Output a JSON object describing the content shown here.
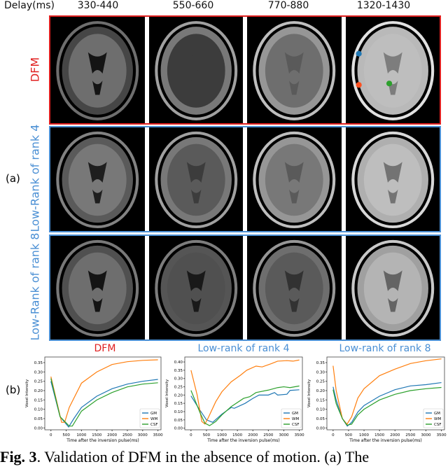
{
  "header": {
    "delay_label": "Delay(ms)",
    "delays": [
      "330-440",
      "550-660",
      "770-880",
      "1320-1430"
    ]
  },
  "rows": [
    {
      "label": "DFM",
      "color": "#e02020"
    },
    {
      "label": "Low-Rank of rank 4",
      "color": "#4a8fd4"
    },
    {
      "label": "Low-Rank of rank 8",
      "color": "#4a8fd4"
    }
  ],
  "panel_a_label": "(a)",
  "panel_b_label": "(b)",
  "roi_markers": [
    {
      "tissue": "GM",
      "color": "#1f77b4"
    },
    {
      "tissue": "CSF",
      "color": "#ff5020"
    },
    {
      "tissue": "WM",
      "color": "#2ca02c"
    }
  ],
  "caption": {
    "fig": "Fig. 3",
    "text": ". Validation of DFM in the absence of motion. (a) The"
  },
  "chart_data": [
    {
      "type": "line",
      "title": "DFM",
      "title_color": "#e02020",
      "xlabel": "Time after the inversion pulse(ms)",
      "ylabel": "Voxel Intensity",
      "xlim": [
        -200,
        3600
      ],
      "ylim": [
        -0.01,
        0.38
      ],
      "xticks": [
        0,
        500,
        1000,
        1500,
        2000,
        2500,
        3000,
        3500
      ],
      "yticks": [
        "0.00",
        "0.05",
        "0.10",
        "0.15",
        "0.20",
        "0.25",
        "0.30",
        "0.35"
      ],
      "legend": "bottom-right",
      "series": [
        {
          "name": "GM",
          "color": "#1f77b4",
          "x": [
            0,
            300,
            580,
            750,
            1000,
            1500,
            2000,
            2500,
            3000,
            3500
          ],
          "y": [
            0.25,
            0.06,
            0.005,
            0.05,
            0.11,
            0.17,
            0.21,
            0.235,
            0.25,
            0.26
          ]
        },
        {
          "name": "WM",
          "color": "#ff7f0e",
          "x": [
            0,
            350,
            450,
            600,
            1000,
            1500,
            2000,
            2500,
            3000,
            3500
          ],
          "y": [
            0.275,
            0.03,
            0.03,
            0.11,
            0.24,
            0.3,
            0.34,
            0.355,
            0.362,
            0.365
          ]
        },
        {
          "name": "CSF",
          "color": "#2ca02c",
          "x": [
            0,
            300,
            600,
            700,
            1000,
            1500,
            2000,
            2500,
            3000,
            3500
          ],
          "y": [
            0.265,
            0.06,
            0.01,
            0.01,
            0.09,
            0.15,
            0.19,
            0.22,
            0.235,
            0.242
          ]
        }
      ]
    },
    {
      "type": "line",
      "title": "Low-rank of rank 4",
      "title_color": "#4a8fd4",
      "xlabel": "Time after the inversion pulse(ms)",
      "ylabel": "Voxel Intensity",
      "xlim": [
        -200,
        3600
      ],
      "ylim": [
        -0.01,
        0.43
      ],
      "xticks": [
        0,
        500,
        1000,
        1500,
        2000,
        2500,
        3000,
        3500
      ],
      "yticks": [
        "0.00",
        "0.05",
        "0.10",
        "0.15",
        "0.20",
        "0.25",
        "0.30",
        "0.35",
        "0.40"
      ],
      "legend": "bottom-right",
      "series": [
        {
          "name": "GM",
          "color": "#1f77b4",
          "x": [
            0,
            250,
            500,
            700,
            1000,
            1300,
            1400,
            1750,
            2000,
            2200,
            2500,
            2700,
            2800,
            3100,
            3200,
            3500
          ],
          "y": [
            0.195,
            0.12,
            0.05,
            0.035,
            0.085,
            0.125,
            0.12,
            0.15,
            0.18,
            0.2,
            0.2,
            0.215,
            0.2,
            0.205,
            0.228,
            0.232
          ]
        },
        {
          "name": "WM",
          "color": "#ff7f0e",
          "x": [
            0,
            200,
            350,
            450,
            550,
            800,
            1000,
            1300,
            1600,
            1800,
            2100,
            2300,
            2600,
            2800,
            3100,
            3300,
            3500
          ],
          "y": [
            0.35,
            0.2,
            0.04,
            0.025,
            0.06,
            0.16,
            0.22,
            0.28,
            0.32,
            0.35,
            0.375,
            0.37,
            0.39,
            0.405,
            0.408,
            0.405,
            0.412
          ]
        },
        {
          "name": "CSF",
          "color": "#2ca02c",
          "x": [
            0,
            300,
            450,
            600,
            800,
            1000,
            1300,
            1700,
            1900,
            2100,
            2500,
            2800,
            3000,
            3200,
            3500
          ],
          "y": [
            0.228,
            0.09,
            0.03,
            0.015,
            0.04,
            0.08,
            0.13,
            0.18,
            0.19,
            0.215,
            0.23,
            0.245,
            0.25,
            0.245,
            0.255
          ]
        }
      ]
    },
    {
      "type": "line",
      "title": "Low-rank of rank 8",
      "title_color": "#4a8fd4",
      "xlabel": "Time after the inversion pulse(ms)",
      "ylabel": "Voxel Intensity",
      "xlim": [
        -200,
        3600
      ],
      "ylim": [
        -0.01,
        0.38
      ],
      "xticks": [
        0,
        500,
        1000,
        1500,
        2000,
        2500,
        3000,
        3500
      ],
      "yticks": [
        "0.00",
        "0.05",
        "0.10",
        "0.15",
        "0.20",
        "0.25",
        "0.30",
        "0.35"
      ],
      "legend": "bottom-right",
      "series": [
        {
          "name": "GM",
          "color": "#1f77b4",
          "x": [
            0,
            100,
            300,
            460,
            600,
            800,
            1000,
            1500,
            2000,
            2500,
            3000,
            3500
          ],
          "y": [
            0.22,
            0.15,
            0.05,
            0.01,
            0.03,
            0.085,
            0.12,
            0.17,
            0.205,
            0.225,
            0.232,
            0.243
          ]
        },
        {
          "name": "WM",
          "color": "#ff7f0e",
          "x": [
            0,
            100,
            300,
            450,
            600,
            800,
            1000,
            1500,
            2000,
            2500,
            3000,
            3500
          ],
          "y": [
            0.333,
            0.2,
            0.05,
            0.02,
            0.06,
            0.16,
            0.21,
            0.28,
            0.315,
            0.345,
            0.36,
            0.37
          ]
        },
        {
          "name": "CSF",
          "color": "#2ca02c",
          "x": [
            0,
            100,
            300,
            450,
            600,
            800,
            1000,
            1500,
            2000,
            2500,
            3000,
            3500
          ],
          "y": [
            0.205,
            0.13,
            0.05,
            0.015,
            0.02,
            0.07,
            0.1,
            0.15,
            0.18,
            0.2,
            0.21,
            0.217
          ]
        }
      ]
    }
  ]
}
